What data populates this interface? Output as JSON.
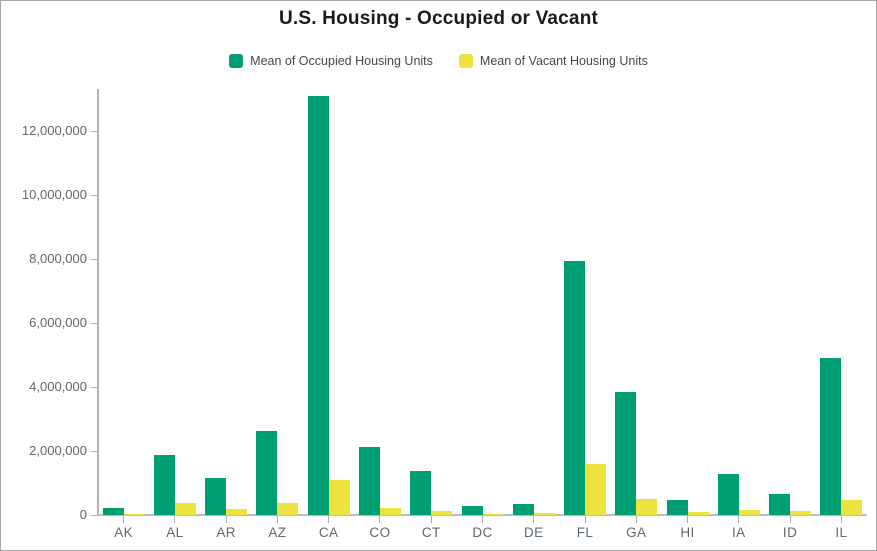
{
  "title": "U.S. Housing - Occupied or Vacant",
  "legend": {
    "items": [
      {
        "label": "Mean of Occupied Housing Units",
        "color": "#009E73"
      },
      {
        "label": "Mean of Vacant Housing Units",
        "color": "#EDE23F"
      }
    ]
  },
  "y_axis": {
    "tick_labels": [
      "0",
      "2,000,000",
      "4,000,000",
      "6,000,000",
      "8,000,000",
      "10,000,000",
      "12,000,000"
    ]
  },
  "chart_data": {
    "type": "bar",
    "title": "U.S. Housing - Occupied or Vacant",
    "categories": [
      "AK",
      "AL",
      "AR",
      "AZ",
      "CA",
      "CO",
      "CT",
      "DC",
      "DE",
      "FL",
      "GA",
      "HI",
      "IA",
      "ID",
      "IL"
    ],
    "series": [
      {
        "name": "Mean of Occupied Housing Units",
        "color": "#009E73",
        "values": [
          230000,
          1880000,
          1150000,
          2620000,
          13100000,
          2120000,
          1360000,
          270000,
          350000,
          7930000,
          3830000,
          460000,
          1280000,
          650000,
          4900000
        ]
      },
      {
        "name": "Mean of Vacant Housing Units",
        "color": "#EDE23F",
        "values": [
          40000,
          370000,
          190000,
          390000,
          1100000,
          210000,
          140000,
          30000,
          70000,
          1600000,
          490000,
          90000,
          170000,
          120000,
          480000
        ]
      }
    ],
    "xlabel": "",
    "ylabel": "",
    "ylim": [
      0,
      13300000
    ],
    "ytick_interval": 2000000,
    "grid": false,
    "legend_position": "top"
  },
  "colors": {
    "axis_line": "#aeb3b7",
    "tick": "#a9aeb3",
    "axis_label": "#5e6870",
    "title_text": "#1b1b1b",
    "legend_text": "#42494f",
    "background": "#ffffff",
    "border": "#a6a6a6"
  }
}
